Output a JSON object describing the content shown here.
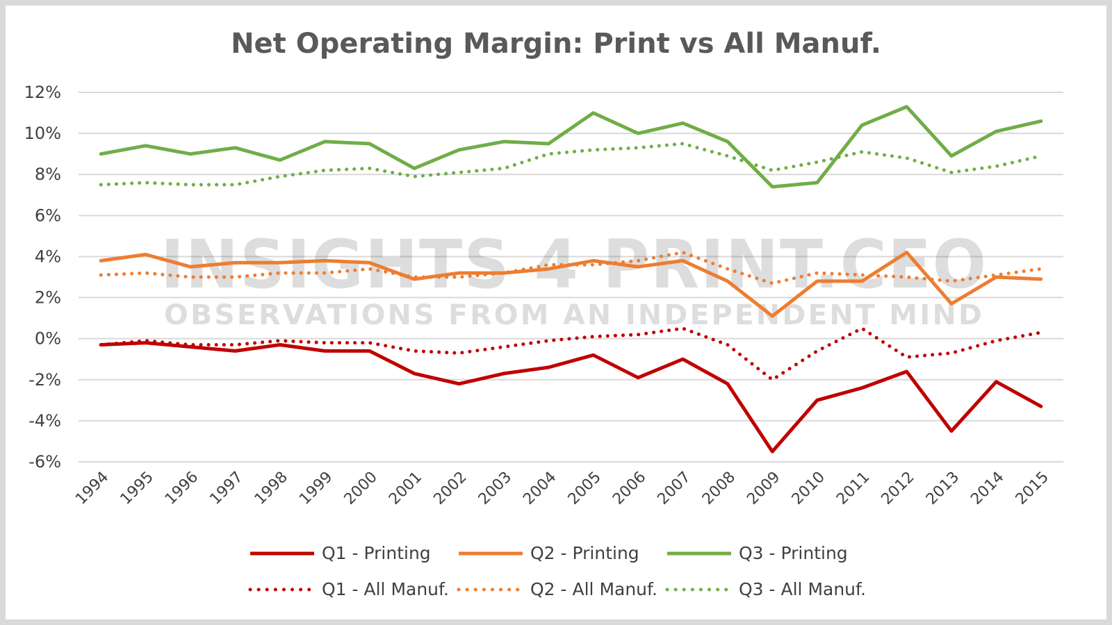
{
  "chart_data": {
    "type": "line",
    "title": "Net Operating Margin: Print vs All Manuf.",
    "watermark": {
      "line1": "INSIGHTS 4 PRINT.CEO",
      "line2": "OBSERVATIONS FROM AN INDEPENDENT MIND"
    },
    "x": [
      "1994",
      "1995",
      "1996",
      "1997",
      "1998",
      "1999",
      "2000",
      "2001",
      "2002",
      "2003",
      "2004",
      "2005",
      "2006",
      "2007",
      "2008",
      "2009",
      "2010",
      "2011",
      "2012",
      "2013",
      "2014",
      "2015"
    ],
    "ylim": [
      -6,
      12
    ],
    "yticks": [
      12,
      10,
      8,
      6,
      4,
      2,
      0,
      -2,
      -4,
      -6
    ],
    "ytick_labels": [
      "12%",
      "10%",
      "8%",
      "6%",
      "4%",
      "2%",
      "0%",
      "-2%",
      "-4%",
      "-6%"
    ],
    "grid": true,
    "legend_position": "bottom",
    "series": [
      {
        "name": "Q1 - Printing",
        "color": "#c00000",
        "style": "solid",
        "values": [
          -0.3,
          -0.2,
          -0.4,
          -0.6,
          -0.3,
          -0.6,
          -0.6,
          -1.7,
          -2.2,
          -1.7,
          -1.4,
          -0.8,
          -1.9,
          -1.0,
          -2.2,
          -5.5,
          -3.0,
          -2.4,
          -1.6,
          -4.5,
          -2.1,
          -3.3
        ]
      },
      {
        "name": "Q2 - Printing",
        "color": "#ed7d31",
        "style": "solid",
        "values": [
          3.8,
          4.1,
          3.5,
          3.7,
          3.7,
          3.8,
          3.7,
          2.9,
          3.2,
          3.2,
          3.4,
          3.8,
          3.5,
          3.8,
          2.8,
          1.1,
          2.8,
          2.8,
          4.2,
          1.7,
          3.0,
          2.9
        ]
      },
      {
        "name": "Q3 - Printing",
        "color": "#70ad47",
        "style": "solid",
        "values": [
          9.0,
          9.4,
          9.0,
          9.3,
          8.7,
          9.6,
          9.5,
          8.3,
          9.2,
          9.6,
          9.5,
          11.0,
          10.0,
          10.5,
          9.6,
          7.4,
          7.6,
          10.4,
          11.3,
          8.9,
          10.1,
          10.6
        ]
      },
      {
        "name": "Q1 - All Manuf.",
        "color": "#c00000",
        "style": "dotted",
        "values": [
          -0.3,
          -0.1,
          -0.3,
          -0.3,
          -0.1,
          -0.2,
          -0.2,
          -0.6,
          -0.7,
          -0.4,
          -0.1,
          0.1,
          0.2,
          0.5,
          -0.3,
          -2.0,
          -0.6,
          0.5,
          -0.9,
          -0.7,
          -0.1,
          0.3
        ]
      },
      {
        "name": "Q2 - All Manuf.",
        "color": "#ed7d31",
        "style": "dotted",
        "values": [
          3.1,
          3.2,
          3.0,
          3.0,
          3.2,
          3.2,
          3.4,
          3.0,
          3.0,
          3.2,
          3.6,
          3.6,
          3.8,
          4.2,
          3.4,
          2.7,
          3.2,
          3.1,
          3.0,
          2.8,
          3.1,
          3.4
        ]
      },
      {
        "name": "Q3 - All Manuf.",
        "color": "#70ad47",
        "style": "dotted",
        "values": [
          7.5,
          7.6,
          7.5,
          7.5,
          7.9,
          8.2,
          8.3,
          7.9,
          8.1,
          8.3,
          9.0,
          9.2,
          9.3,
          9.5,
          8.9,
          8.2,
          8.6,
          9.1,
          8.8,
          8.1,
          8.4,
          8.9
        ]
      }
    ]
  }
}
